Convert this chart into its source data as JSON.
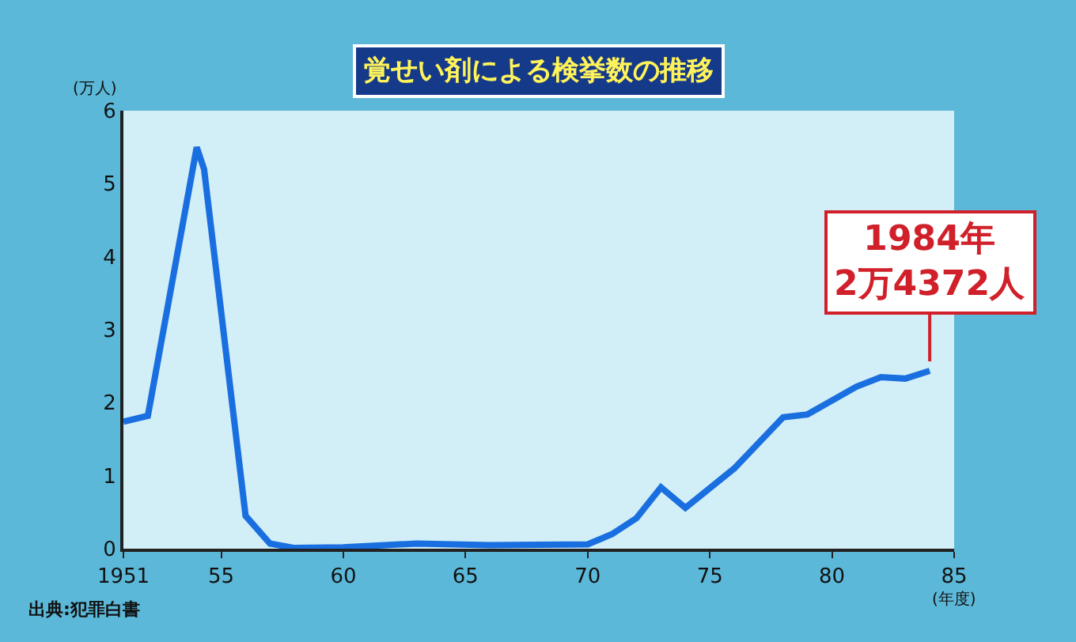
{
  "chart_data": {
    "type": "line",
    "title": "覚せい剤による検挙数の推移",
    "xlabel": "(年度)",
    "ylabel": "(万人)",
    "x": [
      1951,
      1952,
      1954,
      1954.3,
      1956,
      1957,
      1958,
      1960,
      1963,
      1966,
      1970,
      1971,
      1972,
      1973,
      1974,
      1976,
      1978,
      1979,
      1981,
      1982,
      1983,
      1984
    ],
    "series": [
      {
        "color": "#1a6fe0",
        "values": [
          1.74,
          1.82,
          5.5,
          5.2,
          0.45,
          0.07,
          0.01,
          0.02,
          0.07,
          0.05,
          0.06,
          0.2,
          0.42,
          0.84,
          0.56,
          1.1,
          1.8,
          1.84,
          2.22,
          2.35,
          2.33,
          2.4372
        ]
      }
    ],
    "xlim": [
      1951,
      1985
    ],
    "xticks": [
      1951,
      {
        "value": 1955,
        "label": "55"
      },
      {
        "value": 1960,
        "label": "60"
      },
      {
        "value": 1965,
        "label": "65"
      },
      {
        "value": 1970,
        "label": "70"
      },
      {
        "value": 1975,
        "label": "75"
      },
      {
        "value": 1980,
        "label": "80"
      },
      {
        "value": 1985,
        "label": "85"
      }
    ],
    "ylim": [
      0,
      6
    ],
    "yticks": [
      0,
      1,
      2,
      3,
      4,
      5,
      6
    ],
    "grid": false,
    "legend": false,
    "marker": "none",
    "line_style": "solid",
    "annotations": [
      {
        "text": "1984年\n2万4372人",
        "x": 1984,
        "y": 2.4372
      },
      "出典:犯罪白書"
    ]
  }
}
